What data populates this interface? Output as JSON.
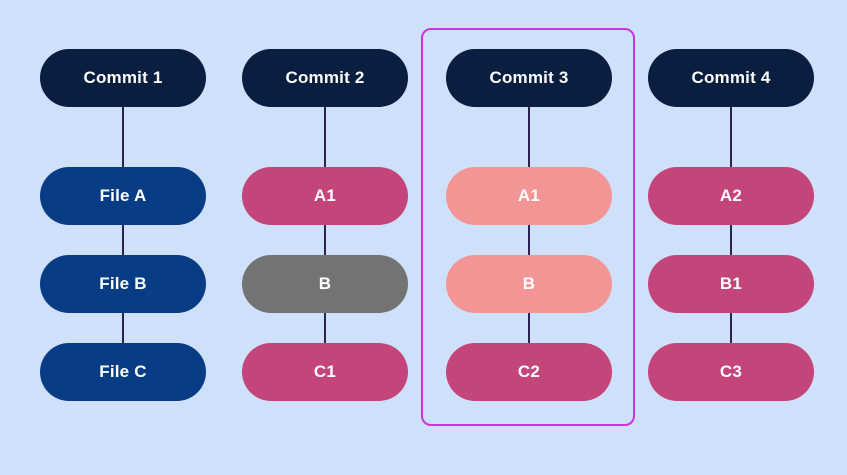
{
  "colors": {
    "background": "#cfe0fb",
    "commit": "#0a1e3f",
    "original_file": "#083d85",
    "modified": "#c4457a",
    "unchanged": "#737373",
    "highlighted": "#f49595",
    "connector": "#2a2250",
    "highlight_border": "#cc33dd"
  },
  "commits": [
    {
      "label": "Commit 1",
      "highlighted": false,
      "files": [
        {
          "label": "File A",
          "state": "original"
        },
        {
          "label": "File B",
          "state": "original"
        },
        {
          "label": "File C",
          "state": "original"
        }
      ]
    },
    {
      "label": "Commit 2",
      "highlighted": false,
      "files": [
        {
          "label": "A1",
          "state": "modified"
        },
        {
          "label": "B",
          "state": "unchanged"
        },
        {
          "label": "C1",
          "state": "modified"
        }
      ]
    },
    {
      "label": "Commit 3",
      "highlighted": true,
      "files": [
        {
          "label": "A1",
          "state": "highlighted"
        },
        {
          "label": "B",
          "state": "highlighted"
        },
        {
          "label": "C2",
          "state": "modified"
        }
      ]
    },
    {
      "label": "Commit 4",
      "highlighted": false,
      "files": [
        {
          "label": "A2",
          "state": "modified"
        },
        {
          "label": "B1",
          "state": "modified"
        },
        {
          "label": "C3",
          "state": "modified"
        }
      ]
    }
  ]
}
